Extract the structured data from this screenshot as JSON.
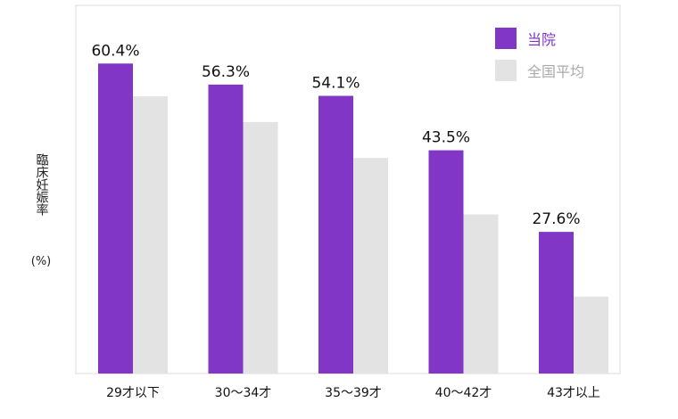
{
  "chart_data": {
    "type": "bar",
    "ylabel": "臨床妊娠率",
    "yunit": "(%)",
    "categories": [
      "29才以下",
      "30～34才",
      "35～39才",
      "40～42才",
      "43才以上"
    ],
    "ylim": [
      0,
      70
    ],
    "series": [
      {
        "name": "当院",
        "color": "#8236c6",
        "values": [
          60.4,
          56.3,
          54.1,
          43.5,
          27.6
        ],
        "labels": [
          "60.4%",
          "56.3%",
          "54.1%",
          "43.5%",
          "27.6%"
        ]
      },
      {
        "name": "全国平均",
        "color": "#e3e3e3",
        "values": [
          54,
          49,
          42,
          31,
          15
        ]
      }
    ],
    "legend_position": "top-right",
    "grid": false
  }
}
